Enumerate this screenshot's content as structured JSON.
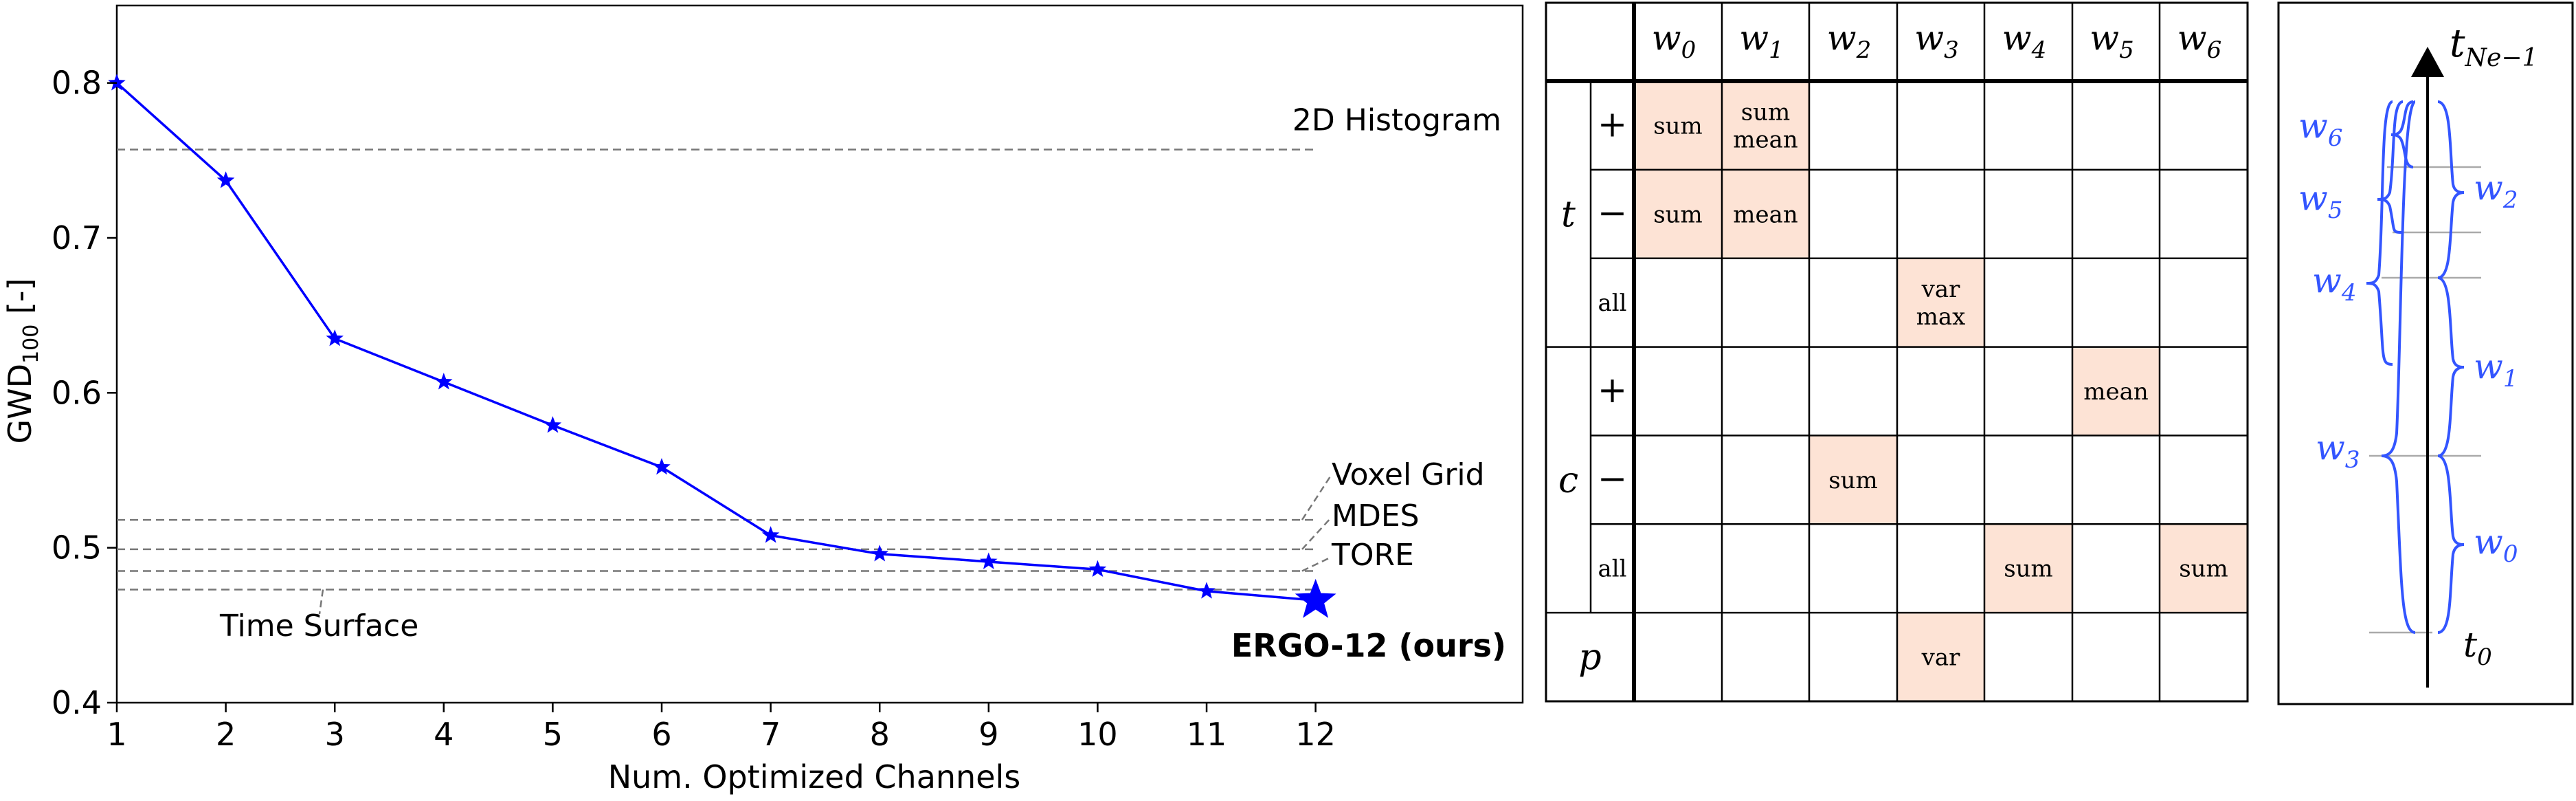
{
  "chart_data": [
    {
      "type": "line",
      "title": "",
      "xlabel": "Num. Optimized Channels",
      "ylabel": "GWD",
      "ylabel_sub": "100",
      "ylabel_unit": "[-]",
      "xlim": [
        1,
        13.9
      ],
      "ylim": [
        0.4,
        0.85
      ],
      "xticks": [
        "1",
        "2",
        "3",
        "4",
        "5",
        "6",
        "7",
        "8",
        "9",
        "10",
        "11",
        "12"
      ],
      "yticks": [
        "0.4",
        "0.5",
        "0.6",
        "0.7",
        "0.8"
      ],
      "grid": false,
      "x": [
        1,
        2,
        3,
        4,
        5,
        6,
        7,
        8,
        9,
        10,
        11,
        12
      ],
      "series": [
        {
          "values": [
            0.8,
            0.737,
            0.635,
            0.607,
            0.579,
            0.552,
            0.508,
            0.496,
            0.491,
            0.486,
            0.472,
            0.466
          ],
          "color": "#0000ff"
        }
      ],
      "highlight": {
        "x": 12,
        "y": 0.466,
        "label": "ERGO-12 (ours)"
      },
      "baselines": [
        {
          "label": "2D Histogram",
          "value": 0.757
        },
        {
          "label": "Voxel Grid",
          "value": 0.518
        },
        {
          "label": "MDES",
          "value": 0.499
        },
        {
          "label": "TORE",
          "value": 0.485
        },
        {
          "label": "Time Surface",
          "value": 0.473
        }
      ]
    },
    {
      "type": "table",
      "columns": [
        "w0",
        "w1",
        "w2",
        "w3",
        "w4",
        "w5",
        "w6"
      ],
      "groups": [
        {
          "name": "t",
          "rows": [
            "+",
            "−",
            "all"
          ]
        },
        {
          "name": "c",
          "rows": [
            "+",
            "−",
            "all"
          ]
        },
        {
          "name": "p",
          "rows": [
            ""
          ]
        }
      ],
      "cells": [
        [
          "sum",
          "sum\nmean",
          "",
          "",
          "",
          "",
          ""
        ],
        [
          "sum",
          "mean",
          "",
          "",
          "",
          "",
          ""
        ],
        [
          "",
          "",
          "",
          "var\nmax",
          "",
          "",
          ""
        ],
        [
          "",
          "",
          "",
          "",
          "",
          "mean",
          ""
        ],
        [
          "",
          "",
          "sum",
          "",
          "",
          "",
          ""
        ],
        [
          "",
          "",
          "",
          "",
          "sum",
          "",
          "sum"
        ],
        [
          "",
          "",
          "",
          "var",
          "",
          "",
          ""
        ]
      ],
      "highlight_color": "#fde3d5"
    },
    {
      "type": "diagram",
      "axis_top_label": "t",
      "axis_top_sub": "Ne−1",
      "axis_bottom_label": "t",
      "axis_bottom_sub": "0",
      "left_windows": [
        "w6",
        "w5",
        "w4",
        "w3"
      ],
      "right_windows": [
        "w2",
        "w1",
        "w0"
      ],
      "color": "#3355ff"
    }
  ]
}
